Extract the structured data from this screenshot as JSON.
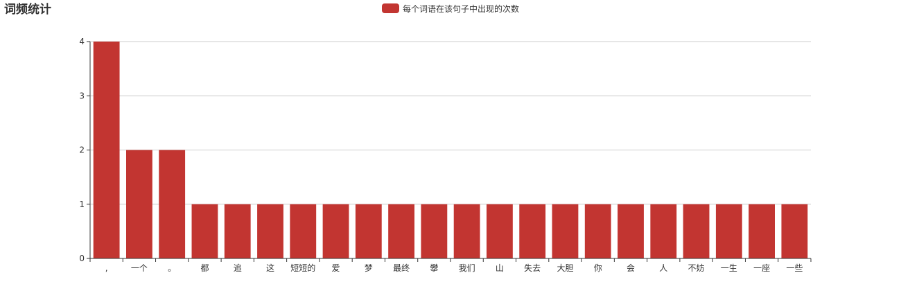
{
  "title": "词频统计",
  "legend": {
    "label": "每个词语在该句子中出现的次数",
    "color": "#c23531"
  },
  "colors": {
    "bar": "#c23531",
    "grid": "#cccccc",
    "axis": "#333333"
  },
  "chart_data": {
    "type": "bar",
    "title": "词频统计",
    "categories": [
      ",",
      "一个",
      "。",
      "都",
      "追",
      "这",
      "短短的",
      "爱",
      "梦",
      "最终",
      "攀",
      "我们",
      "山",
      "失去",
      "大胆",
      "你",
      "会",
      "人",
      "不妨",
      "一生",
      "一座",
      "一些"
    ],
    "series": [
      {
        "name": "每个词语在该句子中出现的次数",
        "values": [
          4,
          2,
          2,
          1,
          1,
          1,
          1,
          1,
          1,
          1,
          1,
          1,
          1,
          1,
          1,
          1,
          1,
          1,
          1,
          1,
          1,
          1
        ]
      }
    ],
    "yticks": [
      0,
      1,
      2,
      3,
      4
    ],
    "ylim": [
      0,
      4
    ],
    "grid": true,
    "legend_position": "top-center"
  }
}
